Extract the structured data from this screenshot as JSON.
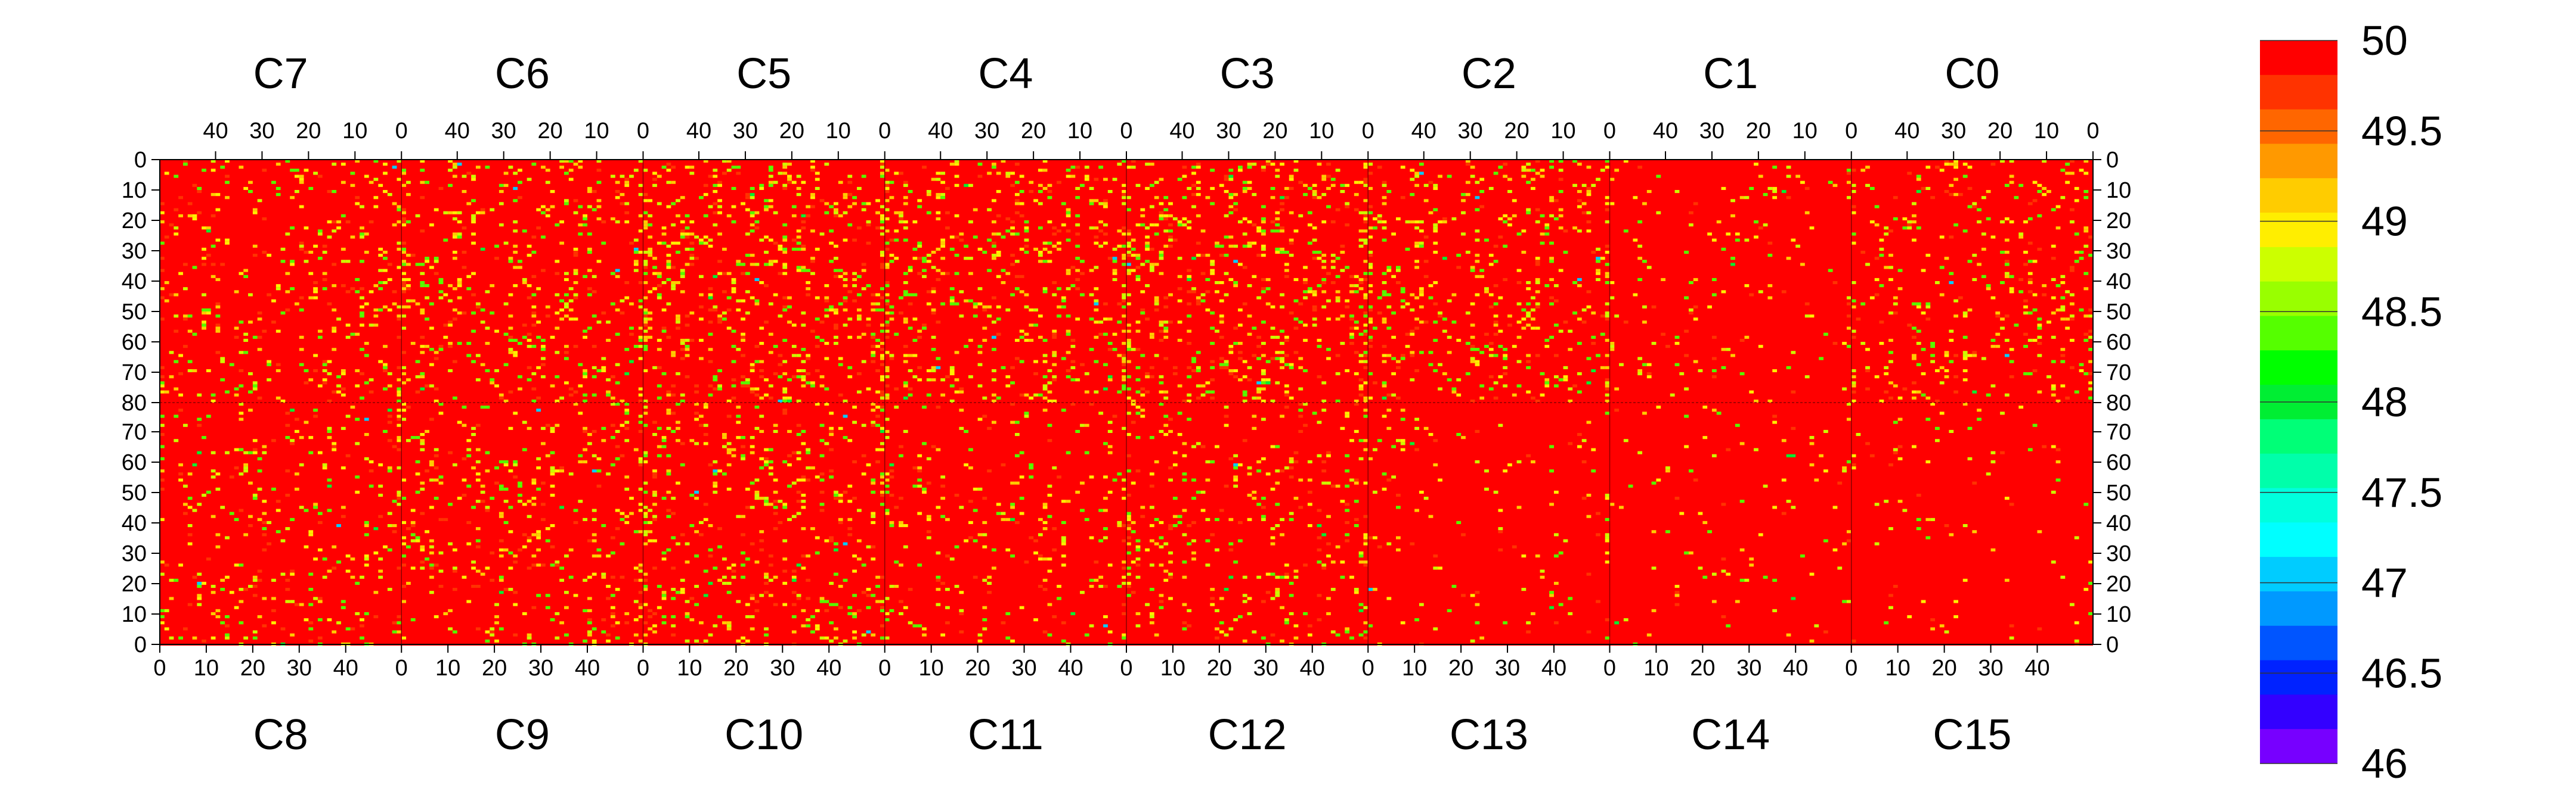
{
  "chart_data": {
    "type": "heatmap",
    "top_row_chips": [
      "C7",
      "C6",
      "C5",
      "C4",
      "C3",
      "C2",
      "C1",
      "C0"
    ],
    "bottom_row_chips": [
      "C8",
      "C9",
      "C10",
      "C11",
      "C12",
      "C13",
      "C14",
      "C15"
    ],
    "columns_per_chip": 52,
    "rows_per_chip": 80,
    "top_x_tick_labels": [
      "40",
      "30",
      "20",
      "10",
      "0"
    ],
    "bottom_x_tick_labels": [
      "0",
      "10",
      "20",
      "30",
      "40"
    ],
    "top_y_tick_labels": [
      "0",
      "10",
      "20",
      "30",
      "40",
      "50",
      "60",
      "70",
      "80"
    ],
    "bottom_y_tick_labels": [
      "70",
      "60",
      "50",
      "40",
      "30",
      "20",
      "10",
      "0"
    ],
    "z_range": [
      46,
      50
    ],
    "z_levels": 20,
    "background_value": 50,
    "dominant_color": "#ff0000",
    "sparse_low_values_note_free": true,
    "chip_hit_density": [
      [
        0.08,
        0.1,
        0.13,
        0.12,
        0.13,
        0.1,
        0.03,
        0.08
      ],
      [
        0.07,
        0.09,
        0.1,
        0.06,
        0.07,
        0.03,
        0.02,
        0.02
      ]
    ],
    "hit_values": [
      49.75,
      49.25,
      49.0,
      48.75,
      48.5
    ],
    "rare_values": [
      47.0,
      48.0
    ],
    "colorbar": {
      "tick_labels": [
        "50",
        "49.5",
        "49",
        "48.5",
        "48",
        "47.5",
        "47",
        "46.5",
        "46"
      ],
      "colors": [
        "#ff0000",
        "#ff3300",
        "#ff6600",
        "#ff9900",
        "#ffcc00",
        "#ffee00",
        "#ccff00",
        "#99ff00",
        "#55ff00",
        "#00ff00",
        "#00ee33",
        "#00ff77",
        "#00ffaa",
        "#00ffdd",
        "#00ffff",
        "#00ccff",
        "#0099ff",
        "#0055ff",
        "#0022ff",
        "#3300ff",
        "#7700ff"
      ]
    }
  }
}
